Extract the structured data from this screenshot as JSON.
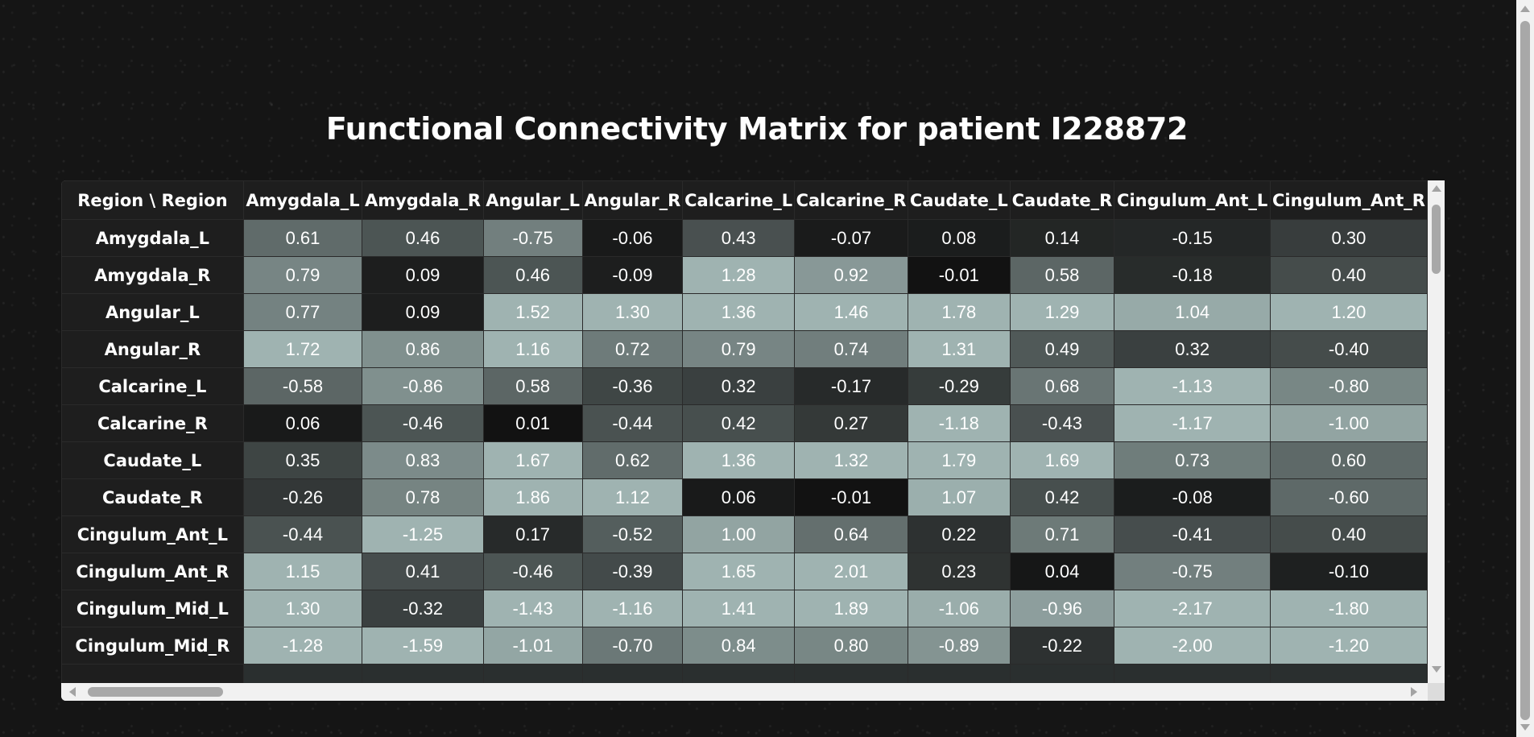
{
  "page": {
    "title": "Functional Connectivity Matrix for patient I228872"
  },
  "matrix": {
    "corner_header": "Region \\ Region",
    "columns": [
      "Amygdala_L",
      "Amygdala_R",
      "Angular_L",
      "Angular_R",
      "Calcarine_L",
      "Calcarine_R",
      "Caudate_L",
      "Caudate_R",
      "Cingulum_Ant_L",
      "Cingulum_Ant_R"
    ],
    "rows": [
      {
        "label": "Amygdala_L",
        "values": [
          "0.61",
          "0.46",
          "-0.75",
          "-0.06",
          "0.43",
          "-0.07",
          "0.08",
          "0.14",
          "-0.15",
          "0.30"
        ]
      },
      {
        "label": "Amygdala_R",
        "values": [
          "0.79",
          "0.09",
          "0.46",
          "-0.09",
          "1.28",
          "0.92",
          "-0.01",
          "0.58",
          "-0.18",
          "0.40"
        ]
      },
      {
        "label": "Angular_L",
        "values": [
          "0.77",
          "0.09",
          "1.52",
          "1.30",
          "1.36",
          "1.46",
          "1.78",
          "1.29",
          "1.04",
          "1.20"
        ]
      },
      {
        "label": "Angular_R",
        "values": [
          "1.72",
          "0.86",
          "1.16",
          "0.72",
          "0.79",
          "0.74",
          "1.31",
          "0.49",
          "0.32",
          "-0.40"
        ]
      },
      {
        "label": "Calcarine_L",
        "values": [
          "-0.58",
          "-0.86",
          "0.58",
          "-0.36",
          "0.32",
          "-0.17",
          "-0.29",
          "0.68",
          "-1.13",
          "-0.80"
        ]
      },
      {
        "label": "Calcarine_R",
        "values": [
          "0.06",
          "-0.46",
          "0.01",
          "-0.44",
          "0.42",
          "0.27",
          "-1.18",
          "-0.43",
          "-1.17",
          "-1.00"
        ]
      },
      {
        "label": "Caudate_L",
        "values": [
          "0.35",
          "0.83",
          "1.67",
          "0.62",
          "1.36",
          "1.32",
          "1.79",
          "1.69",
          "0.73",
          "0.60"
        ]
      },
      {
        "label": "Caudate_R",
        "values": [
          "-0.26",
          "0.78",
          "1.86",
          "1.12",
          "0.06",
          "-0.01",
          "1.07",
          "0.42",
          "-0.08",
          "-0.60"
        ]
      },
      {
        "label": "Cingulum_Ant_L",
        "values": [
          "-0.44",
          "-1.25",
          "0.17",
          "-0.52",
          "1.00",
          "0.64",
          "0.22",
          "0.71",
          "-0.41",
          "0.40"
        ]
      },
      {
        "label": "Cingulum_Ant_R",
        "values": [
          "1.15",
          "0.41",
          "-0.46",
          "-0.39",
          "1.65",
          "2.01",
          "0.23",
          "0.04",
          "-0.75",
          "-0.10"
        ]
      },
      {
        "label": "Cingulum_Mid_L",
        "values": [
          "1.30",
          "-0.32",
          "-1.43",
          "-1.16",
          "1.41",
          "1.89",
          "-1.06",
          "-0.96",
          "-2.17",
          "-1.80"
        ]
      },
      {
        "label": "Cingulum_Mid_R",
        "values": [
          "-1.28",
          "-1.59",
          "-1.01",
          "-0.70",
          "0.84",
          "0.80",
          "-0.89",
          "-0.22",
          "-2.00",
          "-1.20"
        ]
      },
      {
        "label": "",
        "values": [
          "",
          "",
          "",
          "",
          "",
          "",
          "",
          "",
          "",
          ""
        ]
      }
    ]
  },
  "colors": {
    "low": "#111111",
    "high": "#9fb3b1",
    "header_bg": "#1e1e1e"
  }
}
